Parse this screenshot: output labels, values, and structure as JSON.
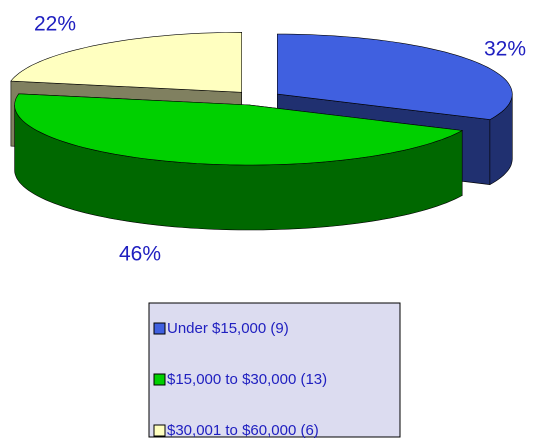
{
  "chart_data": {
    "type": "pie3d",
    "categories": [
      "Under $15,000  (9)",
      "$15,000 to $30,000 (13)",
      "$30,001 to $60,000 (6)"
    ],
    "values": [
      32,
      46,
      22
    ],
    "value_labels": [
      "32%",
      "46%",
      "22%"
    ],
    "colors": [
      "#4060e0",
      "#00d000",
      "#ffffc0"
    ],
    "legend": "bottom"
  }
}
